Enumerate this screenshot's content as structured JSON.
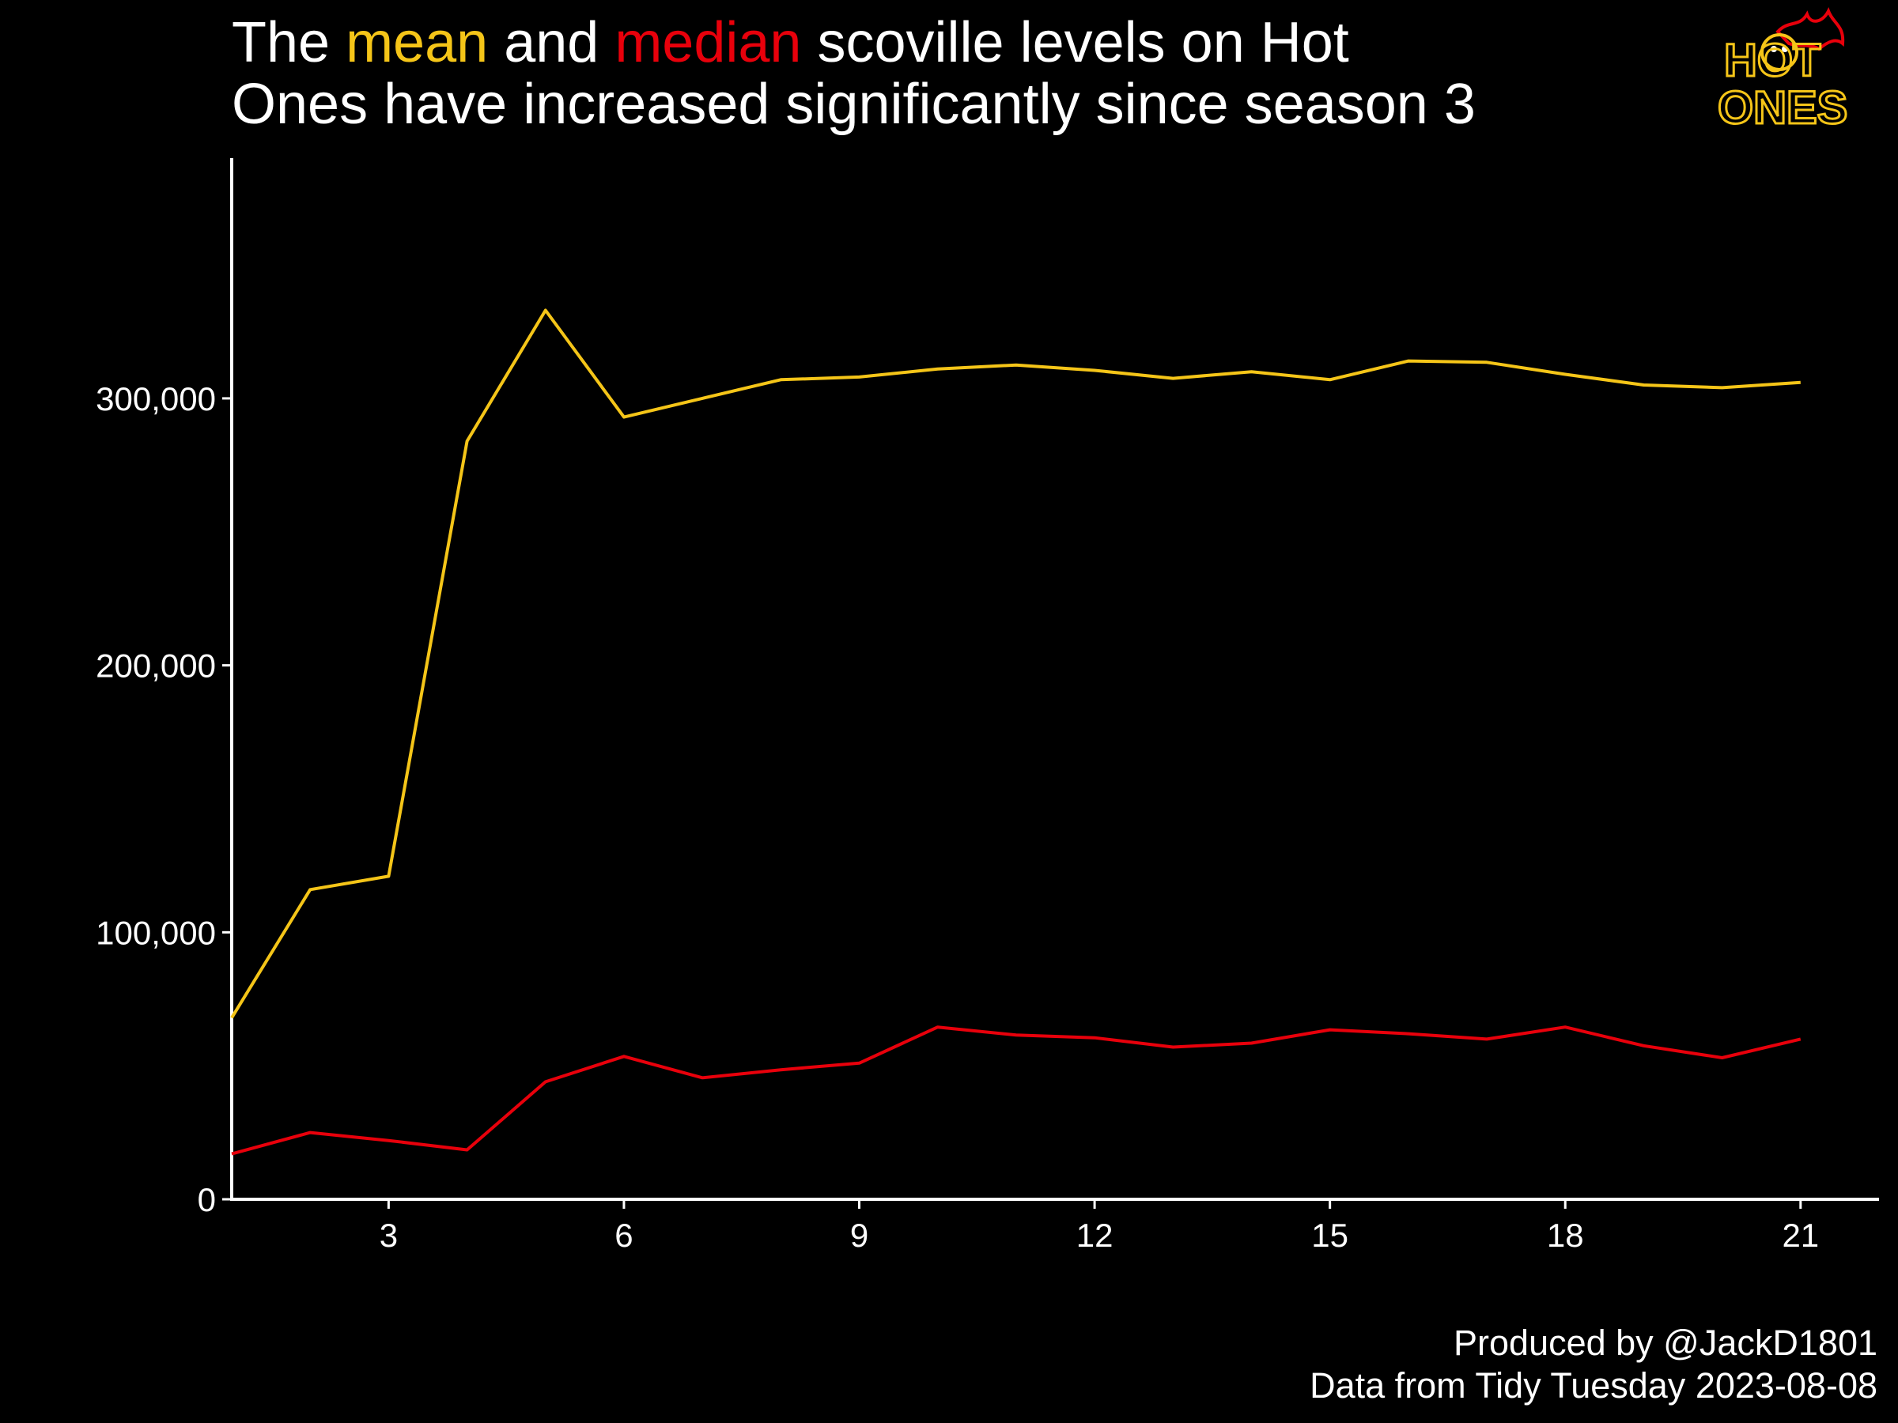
{
  "title": {
    "line1": {
      "pre": "The ",
      "mean_word": "mean",
      "mid": " and ",
      "median_word": "median",
      "post": " scoville levels on Hot"
    },
    "line2": "Ones have increased significantly since season 3"
  },
  "caption": {
    "line1": "Produced by @JackD1801",
    "line2": "Data from Tidy Tuesday 2023-08-08"
  },
  "logo": {
    "line1": "HOT",
    "line2": "ONES",
    "icon": "flaming-face-icon"
  },
  "colors": {
    "background": "#000000",
    "mean": "#F5C518",
    "median": "#E8000B",
    "axis": "#FFFFFF",
    "text": "#FFFFFF"
  },
  "chart_data": {
    "type": "line",
    "title": "The mean and median scoville levels on Hot Ones have increased significantly since season 3",
    "xlabel": "",
    "ylabel": "",
    "x": [
      1,
      2,
      3,
      4,
      5,
      6,
      7,
      8,
      9,
      10,
      11,
      12,
      13,
      14,
      15,
      16,
      17,
      18,
      19,
      20,
      21
    ],
    "xlim": [
      1,
      22
    ],
    "ylim": [
      0,
      390000
    ],
    "xticks": [
      3,
      6,
      9,
      12,
      15,
      18,
      21
    ],
    "xtick_labels": [
      "3",
      "6",
      "9",
      "12",
      "15",
      "18",
      "21"
    ],
    "yticks": [
      0,
      100000,
      200000,
      300000
    ],
    "ytick_labels": [
      "0",
      "100,000",
      "200,000",
      "300,000"
    ],
    "grid": false,
    "legend": "none",
    "series": [
      {
        "key": "mean",
        "color": "#F5C518",
        "values": [
          68000,
          116000,
          121000,
          284000,
          333000,
          293000,
          300000,
          307000,
          308000,
          311000,
          312500,
          310500,
          307500,
          310000,
          307000,
          314000,
          313500,
          309000,
          305000,
          304000,
          306000
        ]
      },
      {
        "key": "median",
        "color": "#E8000B",
        "values": [
          17000,
          25000,
          22000,
          18500,
          44000,
          53500,
          45500,
          48500,
          51000,
          64500,
          61500,
          60500,
          57000,
          58500,
          63500,
          62000,
          60000,
          64500,
          57500,
          53000,
          60000
        ]
      }
    ]
  }
}
